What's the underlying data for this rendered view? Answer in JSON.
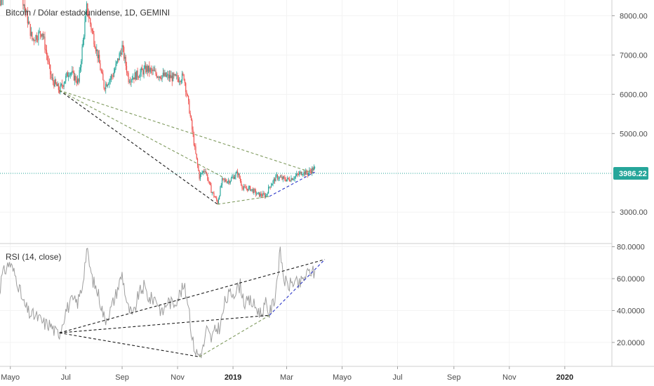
{
  "chart_data": [
    {
      "type": "candlestick",
      "title": "Bitcoin / Dólar estadounidense, 1D, GEMINI",
      "ylim": [
        2200,
        8400
      ],
      "y_ticks": [
        {
          "value": 8000,
          "label": "8000.00"
        },
        {
          "value": 7000,
          "label": "7000.00"
        },
        {
          "value": 6000,
          "label": "6000.00"
        },
        {
          "value": 5000,
          "label": "5000.00"
        },
        {
          "value": 3000,
          "label": "3000.00"
        }
      ],
      "last_price": {
        "value": 3986.22,
        "label": "3986.22",
        "color": "#26a69a"
      },
      "up_color": "#26a69a",
      "down_color": "#ef5350",
      "price_path": [
        [
          "2018-04-15",
          7800
        ],
        [
          "2018-04-25",
          8900
        ],
        [
          "2018-05-05",
          9700
        ],
        [
          "2018-05-15",
          8400
        ],
        [
          "2018-05-25",
          7400
        ],
        [
          "2018-06-05",
          7600
        ],
        [
          "2018-06-15",
          6400
        ],
        [
          "2018-06-24",
          6100
        ],
        [
          "2018-07-05",
          6600
        ],
        [
          "2018-07-15",
          6300
        ],
        [
          "2018-07-24",
          8200
        ],
        [
          "2018-08-05",
          7000
        ],
        [
          "2018-08-12",
          6200
        ],
        [
          "2018-08-22",
          6500
        ],
        [
          "2018-09-01",
          7200
        ],
        [
          "2018-09-08",
          6400
        ],
        [
          "2018-09-18",
          6500
        ],
        [
          "2018-09-28",
          6650
        ],
        [
          "2018-10-10",
          6500
        ],
        [
          "2018-10-20",
          6450
        ],
        [
          "2018-11-01",
          6400
        ],
        [
          "2018-11-08",
          6450
        ],
        [
          "2018-11-14",
          5600
        ],
        [
          "2018-11-20",
          4600
        ],
        [
          "2018-11-25",
          3900
        ],
        [
          "2018-12-01",
          4100
        ],
        [
          "2018-12-08",
          3550
        ],
        [
          "2018-12-15",
          3250
        ],
        [
          "2018-12-20",
          3800
        ],
        [
          "2018-12-28",
          3800
        ],
        [
          "2019-01-06",
          4000
        ],
        [
          "2019-01-12",
          3600
        ],
        [
          "2019-01-20",
          3600
        ],
        [
          "2019-01-28",
          3450
        ],
        [
          "2019-02-06",
          3420
        ],
        [
          "2019-02-10",
          3650
        ],
        [
          "2019-02-18",
          3900
        ],
        [
          "2019-02-24",
          3850
        ],
        [
          "2019-03-03",
          3830
        ],
        [
          "2019-03-10",
          3900
        ],
        [
          "2019-03-18",
          4020
        ],
        [
          "2019-03-24",
          3990
        ],
        [
          "2019-03-30",
          4100
        ],
        [
          "2019-04-01",
          4100
        ]
      ],
      "trendlines": [
        {
          "color": "#1a1a1a",
          "dash": "4,3",
          "from": [
            "2018-06-24",
            6100
          ],
          "to": [
            "2018-12-15",
            3200
          ]
        },
        {
          "color": "#7f9a5e",
          "dash": "4,3",
          "from": [
            "2018-06-24",
            6100
          ],
          "to": [
            "2019-03-30",
            4000
          ]
        },
        {
          "color": "#7f9a5e",
          "dash": "4,3",
          "from": [
            "2018-06-24",
            6100
          ],
          "to": [
            "2018-12-20",
            3900
          ]
        },
        {
          "color": "#7f9a5e",
          "dash": "4,3",
          "from": [
            "2018-12-15",
            3200
          ],
          "to": [
            "2019-02-10",
            3400
          ]
        },
        {
          "color": "#2a35c8",
          "dash": "4,3",
          "from": [
            "2019-02-10",
            3400
          ],
          "to": [
            "2019-04-01",
            4020
          ]
        }
      ]
    },
    {
      "type": "line",
      "title": "RSI (14, close)",
      "ylim": [
        5,
        82
      ],
      "y_ticks": [
        {
          "value": 80,
          "label": "80.0000"
        },
        {
          "value": 60,
          "label": "60.0000"
        },
        {
          "value": 40,
          "label": "40.0000"
        },
        {
          "value": 20,
          "label": "20.0000"
        }
      ],
      "line_color": "#9e9e9e",
      "rsi_path": [
        [
          "2018-04-15",
          40
        ],
        [
          "2018-04-22",
          62
        ],
        [
          "2018-04-30",
          70
        ],
        [
          "2018-05-08",
          60
        ],
        [
          "2018-05-15",
          45
        ],
        [
          "2018-05-22",
          38
        ],
        [
          "2018-05-30",
          36
        ],
        [
          "2018-06-07",
          32
        ],
        [
          "2018-06-14",
          31
        ],
        [
          "2018-06-20",
          26
        ],
        [
          "2018-06-24",
          26
        ],
        [
          "2018-07-01",
          40
        ],
        [
          "2018-07-08",
          46
        ],
        [
          "2018-07-14",
          45
        ],
        [
          "2018-07-19",
          55
        ],
        [
          "2018-07-24",
          78
        ],
        [
          "2018-07-30",
          60
        ],
        [
          "2018-08-06",
          50
        ],
        [
          "2018-08-13",
          34
        ],
        [
          "2018-08-19",
          40
        ],
        [
          "2018-08-25",
          50
        ],
        [
          "2018-09-01",
          63
        ],
        [
          "2018-09-07",
          42
        ],
        [
          "2018-09-13",
          36
        ],
        [
          "2018-09-19",
          50
        ],
        [
          "2018-09-25",
          55
        ],
        [
          "2018-10-01",
          47
        ],
        [
          "2018-10-08",
          48
        ],
        [
          "2018-10-15",
          38
        ],
        [
          "2018-10-21",
          46
        ],
        [
          "2018-10-27",
          44
        ],
        [
          "2018-11-03",
          50
        ],
        [
          "2018-11-08",
          55
        ],
        [
          "2018-11-13",
          45
        ],
        [
          "2018-11-17",
          22
        ],
        [
          "2018-11-21",
          14
        ],
        [
          "2018-11-25",
          12
        ],
        [
          "2018-11-29",
          16
        ],
        [
          "2018-12-03",
          28
        ],
        [
          "2018-12-08",
          22
        ],
        [
          "2018-12-13",
          28
        ],
        [
          "2018-12-18",
          30
        ],
        [
          "2018-12-23",
          45
        ],
        [
          "2018-12-28",
          50
        ],
        [
          "2019-01-03",
          52
        ],
        [
          "2019-01-09",
          56
        ],
        [
          "2019-01-14",
          44
        ],
        [
          "2019-01-20",
          46
        ],
        [
          "2019-01-26",
          42
        ],
        [
          "2019-02-01",
          38
        ],
        [
          "2019-02-06",
          44
        ],
        [
          "2019-02-10",
          38
        ],
        [
          "2019-02-16",
          48
        ],
        [
          "2019-02-22",
          77
        ],
        [
          "2019-02-26",
          60
        ],
        [
          "2019-03-02",
          55
        ],
        [
          "2019-03-08",
          58
        ],
        [
          "2019-03-15",
          56
        ],
        [
          "2019-03-22",
          62
        ],
        [
          "2019-03-28",
          65
        ],
        [
          "2019-04-01",
          63
        ]
      ],
      "trendlines": [
        {
          "color": "#1a1a1a",
          "dash": "4,3",
          "from": [
            "2018-06-24",
            26
          ],
          "to": [
            "2019-04-12",
            72
          ]
        },
        {
          "color": "#1a1a1a",
          "dash": "4,3",
          "from": [
            "2018-06-24",
            26
          ],
          "to": [
            "2019-02-10",
            37
          ]
        },
        {
          "color": "#1a1a1a",
          "dash": "4,3",
          "from": [
            "2018-06-24",
            26
          ],
          "to": [
            "2018-11-25",
            11
          ]
        },
        {
          "color": "#7f9a5e",
          "dash": "4,3",
          "from": [
            "2018-11-25",
            11
          ],
          "to": [
            "2019-02-10",
            37
          ]
        },
        {
          "color": "#2a35c8",
          "dash": "4,3",
          "from": [
            "2019-02-10",
            37
          ],
          "to": [
            "2019-04-12",
            72
          ]
        }
      ]
    }
  ],
  "x_axis": {
    "ticks": [
      {
        "date": "2018-05-01",
        "label": "Mayo",
        "bold": false
      },
      {
        "date": "2018-07-01",
        "label": "Jul",
        "bold": false
      },
      {
        "date": "2018-09-01",
        "label": "Sep",
        "bold": false
      },
      {
        "date": "2018-11-01",
        "label": "Nov",
        "bold": false
      },
      {
        "date": "2019-01-01",
        "label": "2019",
        "bold": true
      },
      {
        "date": "2019-03-01",
        "label": "Mar",
        "bold": false
      },
      {
        "date": "2019-05-01",
        "label": "Mayo",
        "bold": false
      },
      {
        "date": "2019-07-01",
        "label": "Jul",
        "bold": false
      },
      {
        "date": "2019-09-01",
        "label": "Sep",
        "bold": false
      },
      {
        "date": "2019-11-01",
        "label": "Nov",
        "bold": false
      },
      {
        "date": "2020-01-01",
        "label": "2020",
        "bold": true
      }
    ]
  }
}
